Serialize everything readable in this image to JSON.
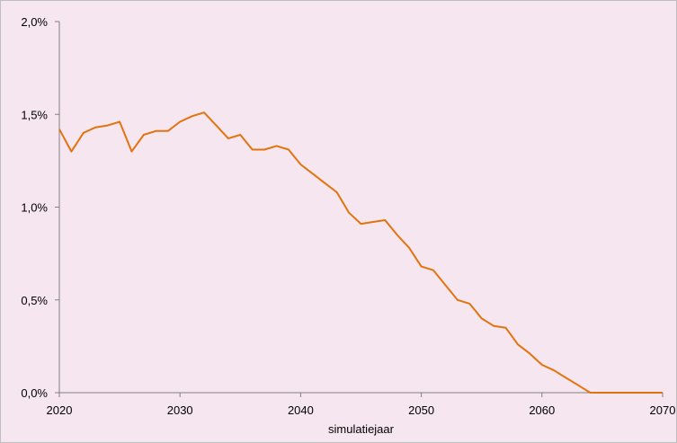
{
  "chart_data": {
    "type": "line",
    "title": "",
    "xlabel": "simulatiejaar",
    "ylabel": "",
    "xlim": [
      2020,
      2070
    ],
    "ylim": [
      0,
      2.0
    ],
    "x_ticks": [
      2020,
      2030,
      2040,
      2050,
      2060,
      2070
    ],
    "x_tick_labels": [
      "2020",
      "2030",
      "2040",
      "2050",
      "2060",
      "2070"
    ],
    "y_ticks": [
      0,
      0.5,
      1.0,
      1.5,
      2.0
    ],
    "y_tick_labels": [
      "0,0%",
      "0,5%",
      "1,0%",
      "1,5%",
      "2,0%"
    ],
    "grid": false,
    "legend": "none",
    "colors": {
      "background": "#f6e6f0",
      "line": "#e3730e",
      "axis": "#808080"
    },
    "series": [
      {
        "x": [
          2020,
          2021,
          2022,
          2023,
          2024,
          2025,
          2026,
          2027,
          2028,
          2029,
          2030,
          2031,
          2032,
          2033,
          2034,
          2035,
          2036,
          2037,
          2038,
          2039,
          2040,
          2041,
          2042,
          2043,
          2044,
          2045,
          2046,
          2047,
          2048,
          2049,
          2050,
          2051,
          2052,
          2053,
          2054,
          2055,
          2056,
          2057,
          2058,
          2059,
          2060,
          2061,
          2062,
          2063,
          2064,
          2065,
          2066,
          2067,
          2068,
          2069,
          2070
        ],
        "values": [
          1.42,
          1.3,
          1.4,
          1.43,
          1.44,
          1.46,
          1.3,
          1.39,
          1.41,
          1.41,
          1.46,
          1.49,
          1.51,
          1.44,
          1.37,
          1.39,
          1.31,
          1.31,
          1.33,
          1.31,
          1.23,
          1.18,
          1.13,
          1.08,
          0.97,
          0.91,
          0.92,
          0.93,
          0.85,
          0.78,
          0.68,
          0.66,
          0.58,
          0.5,
          0.48,
          0.4,
          0.36,
          0.35,
          0.26,
          0.21,
          0.15,
          0.12,
          0.08,
          0.04,
          0.0,
          0.0,
          0.0,
          0.0,
          0.0,
          0.0,
          0.0
        ]
      }
    ]
  }
}
